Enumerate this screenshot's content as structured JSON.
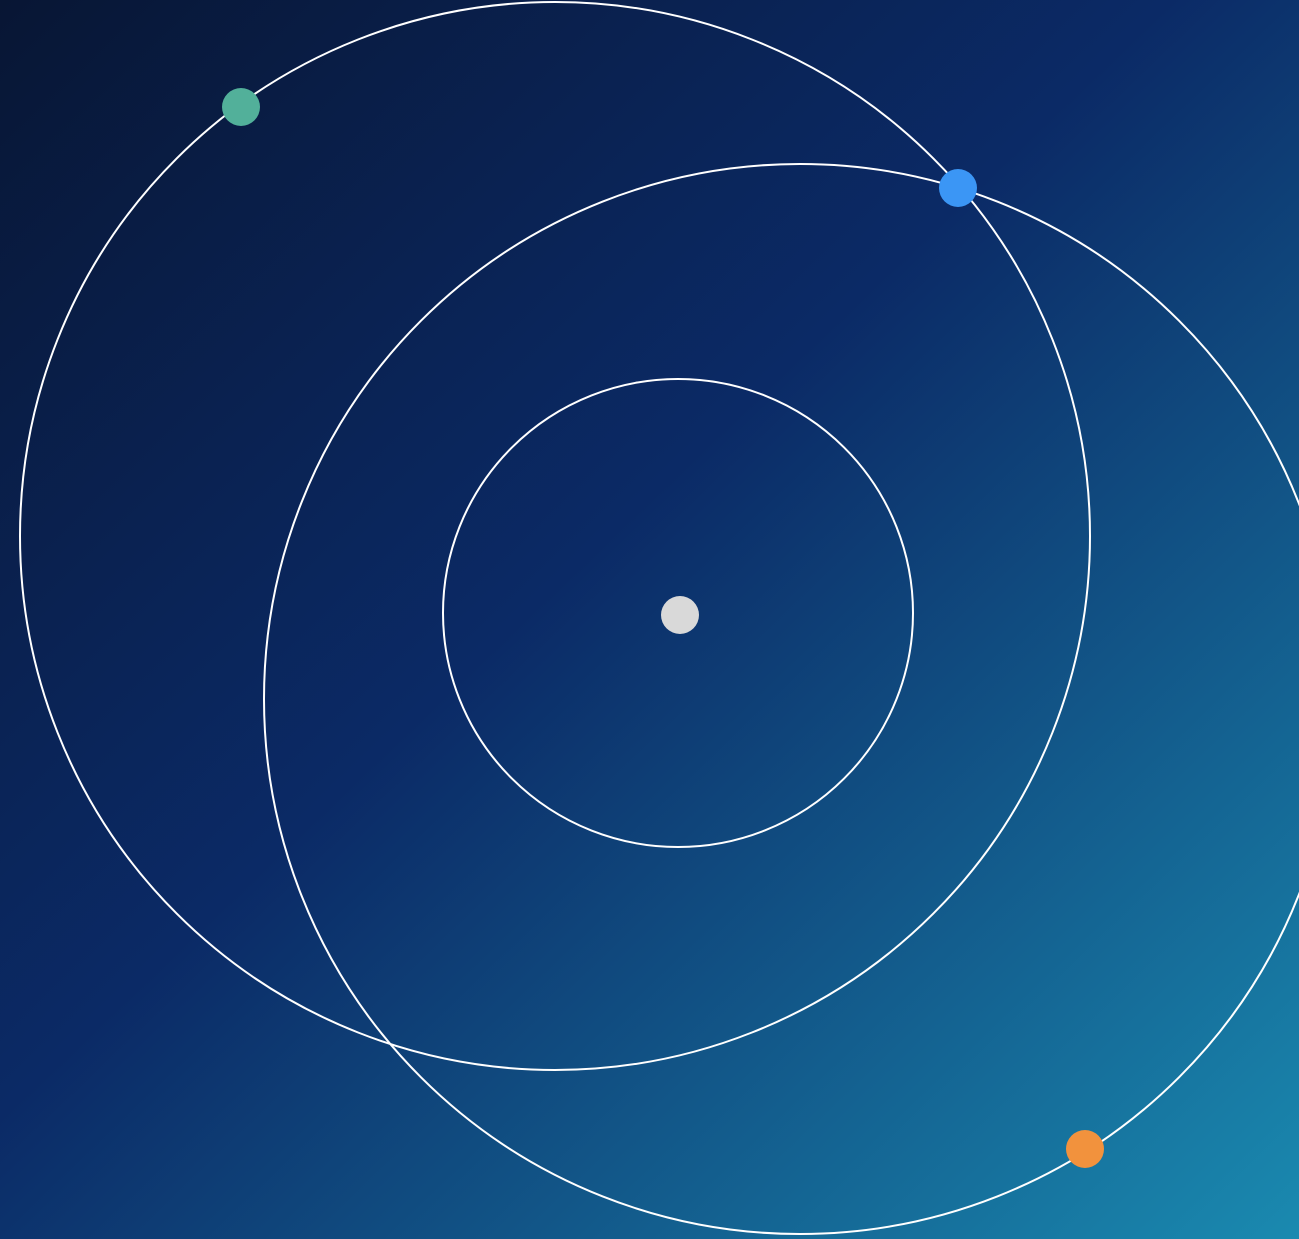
{
  "background": {
    "gradient_start": "#081634",
    "gradient_mid": "#0b2a66",
    "gradient_end": "#1a8ab0"
  },
  "orbits": {
    "stroke_color": "#ffffff"
  },
  "bodies": [
    {
      "id": "center-body",
      "color": "#d9d9d9"
    },
    {
      "id": "green-body",
      "color": "#52b09a"
    },
    {
      "id": "blue-body",
      "color": "#3b96f5"
    },
    {
      "id": "orange-body",
      "color": "#f2923d"
    }
  ]
}
